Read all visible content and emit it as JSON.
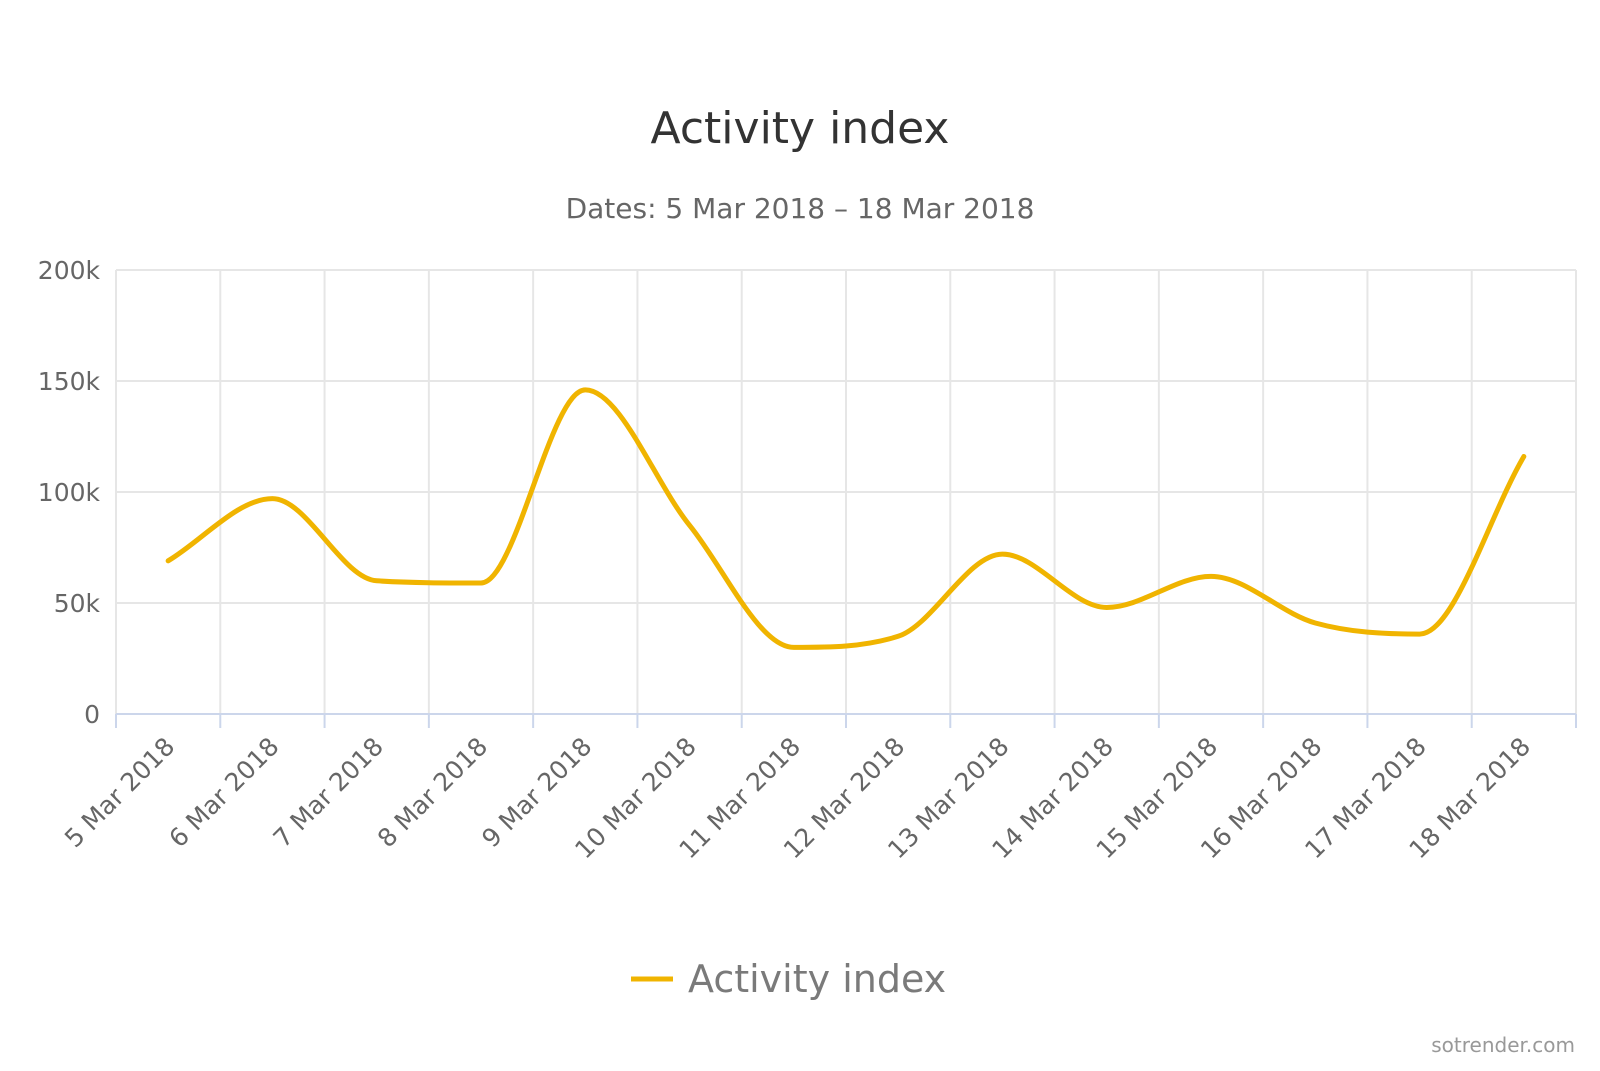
{
  "chart_data": {
    "type": "line",
    "title": "Activity index",
    "subtitle": "Dates: 5 Mar 2018 – 18 Mar 2018",
    "categories": [
      "5 Mar 2018",
      "6 Mar 2018",
      "7 Mar 2018",
      "8 Mar 2018",
      "9 Mar 2018",
      "10 Mar 2018",
      "11 Mar 2018",
      "12 Mar 2018",
      "13 Mar 2018",
      "14 Mar 2018",
      "15 Mar 2018",
      "16 Mar 2018",
      "17 Mar 2018",
      "18 Mar 2018"
    ],
    "series": [
      {
        "name": "Activity index",
        "color": "#f0b400",
        "values": [
          69000,
          97000,
          60000,
          59000,
          146000,
          85000,
          30000,
          35000,
          72000,
          48000,
          62000,
          41000,
          36000,
          116000
        ]
      }
    ],
    "ylim": [
      0,
      200000
    ],
    "yticks": [
      0,
      50000,
      100000,
      150000,
      200000
    ],
    "ytick_labels": [
      "0",
      "50k",
      "100k",
      "150k",
      "200k"
    ],
    "xlabel": "",
    "ylabel": "",
    "grid": true,
    "legend_position": "bottom-center"
  },
  "credits": "sotrender.com"
}
